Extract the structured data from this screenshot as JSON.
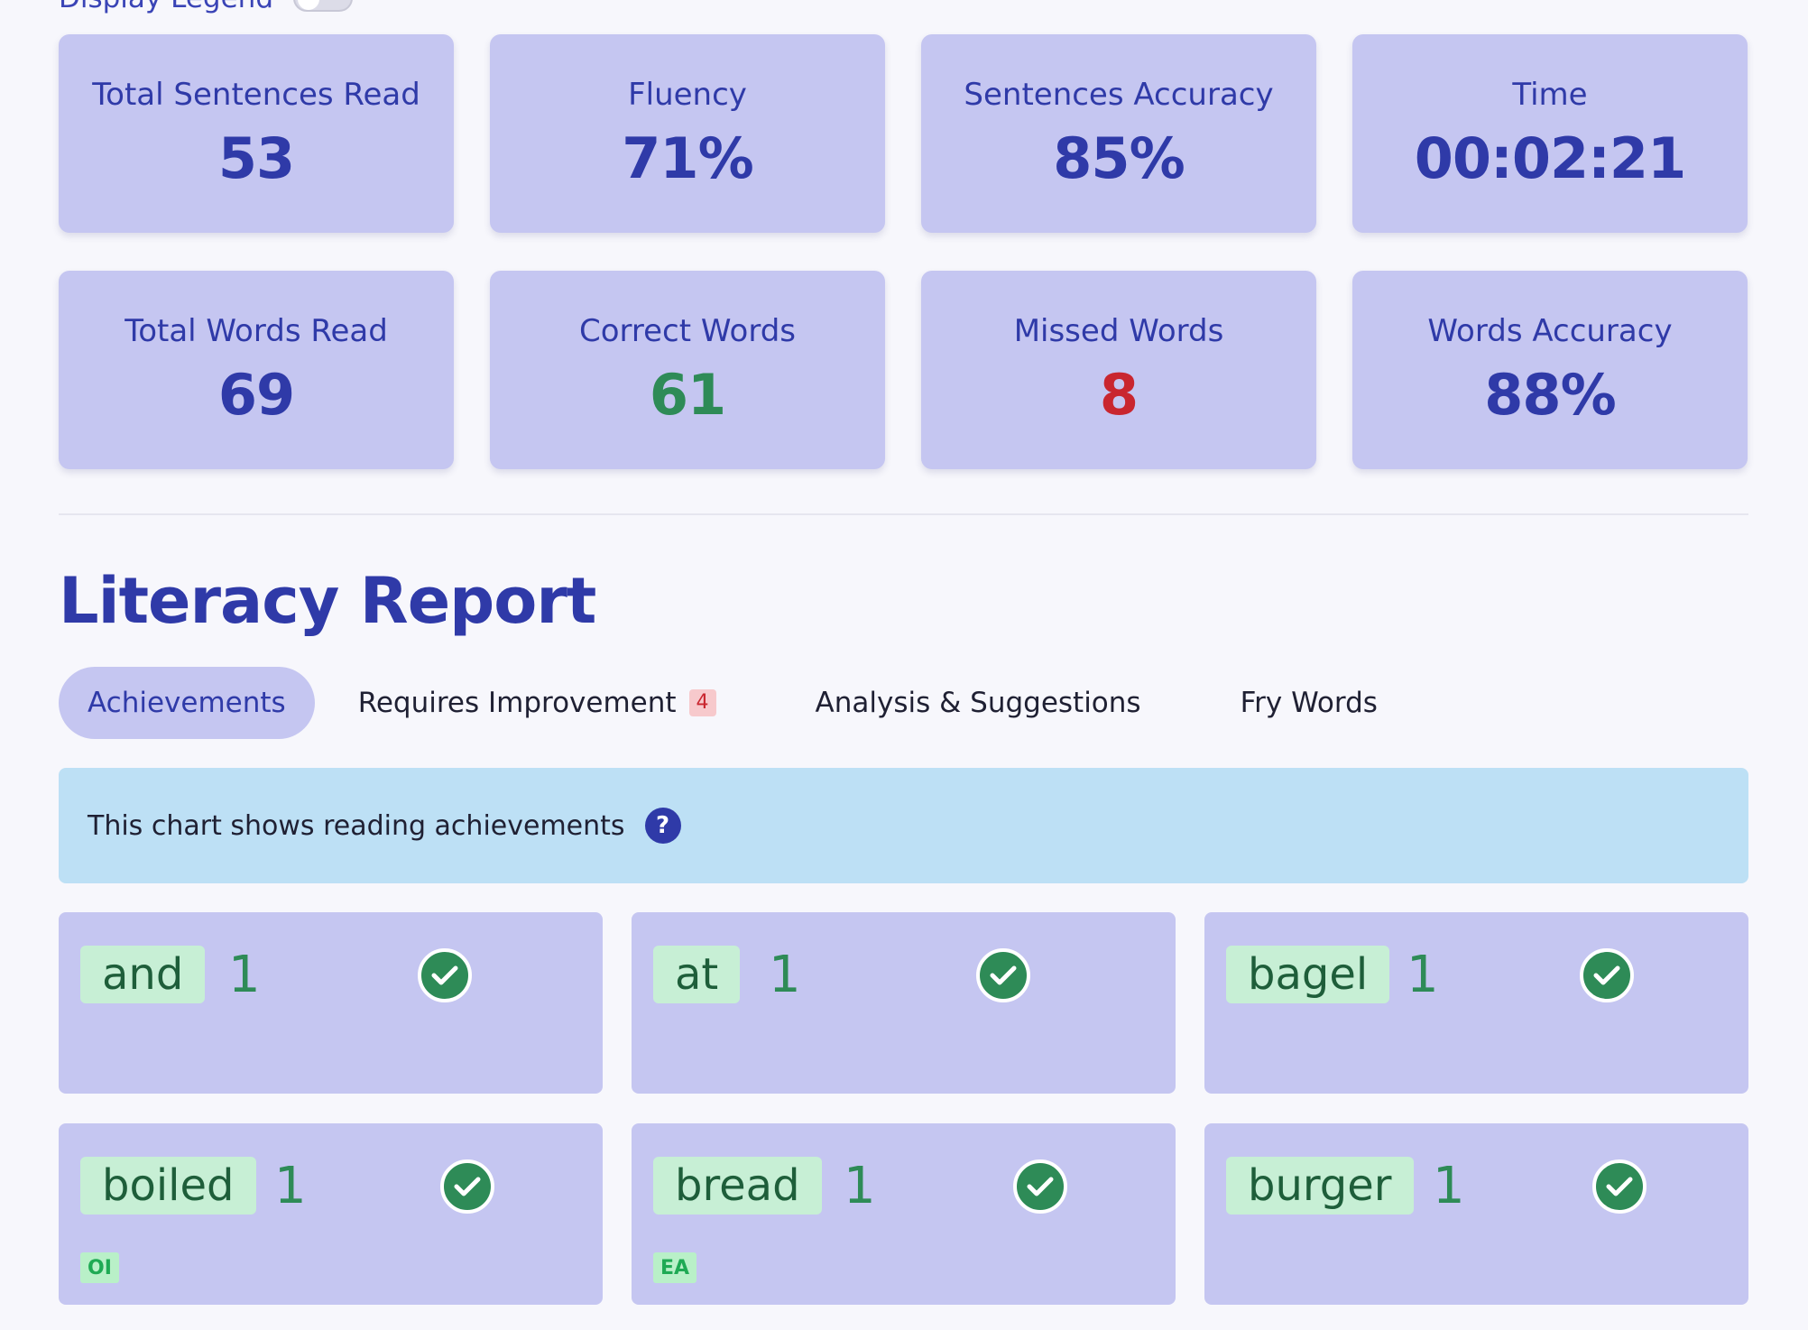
{
  "legend": {
    "label": "Display Legend",
    "enabled": false
  },
  "stats": [
    {
      "label": "Total Sentences Read",
      "value": "53"
    },
    {
      "label": "Fluency",
      "value": "71%"
    },
    {
      "label": "Sentences Accuracy",
      "value": "85%"
    },
    {
      "label": "Time",
      "value": "00:02:21"
    },
    {
      "label": "Total Words Read",
      "value": "69"
    },
    {
      "label": "Correct Words",
      "value": "61"
    },
    {
      "label": "Missed Words",
      "value": "8"
    },
    {
      "label": "Words Accuracy",
      "value": "88%"
    }
  ],
  "colors": {
    "accent": "#2f3aa8",
    "card": "#c5c6f1",
    "correct": "#2e8b57",
    "missed": "#c9262f",
    "info": "#bde0f5"
  },
  "report": {
    "title": "Literacy Report",
    "tabs": [
      {
        "label": "Achievements",
        "active": true
      },
      {
        "label": "Requires Improvement",
        "badge": "4"
      },
      {
        "label": "Analysis & Suggestions"
      },
      {
        "label": "Fry Words"
      }
    ],
    "info_text": "This chart shows reading achievements",
    "help_icon": "?"
  },
  "words": [
    {
      "word": "and",
      "count": "1",
      "icon": "check-circle-icon"
    },
    {
      "word": "at",
      "count": "1",
      "icon": "check-circle-icon"
    },
    {
      "word": "bagel",
      "count": "1",
      "icon": "check-circle-icon"
    },
    {
      "word": "boiled",
      "count": "1",
      "tag": "OI",
      "icon": "check-circle-icon"
    },
    {
      "word": "bread",
      "count": "1",
      "tag": "EA",
      "icon": "check-circle-icon"
    },
    {
      "word": "burger",
      "count": "1",
      "icon": "check-circle-icon"
    }
  ]
}
